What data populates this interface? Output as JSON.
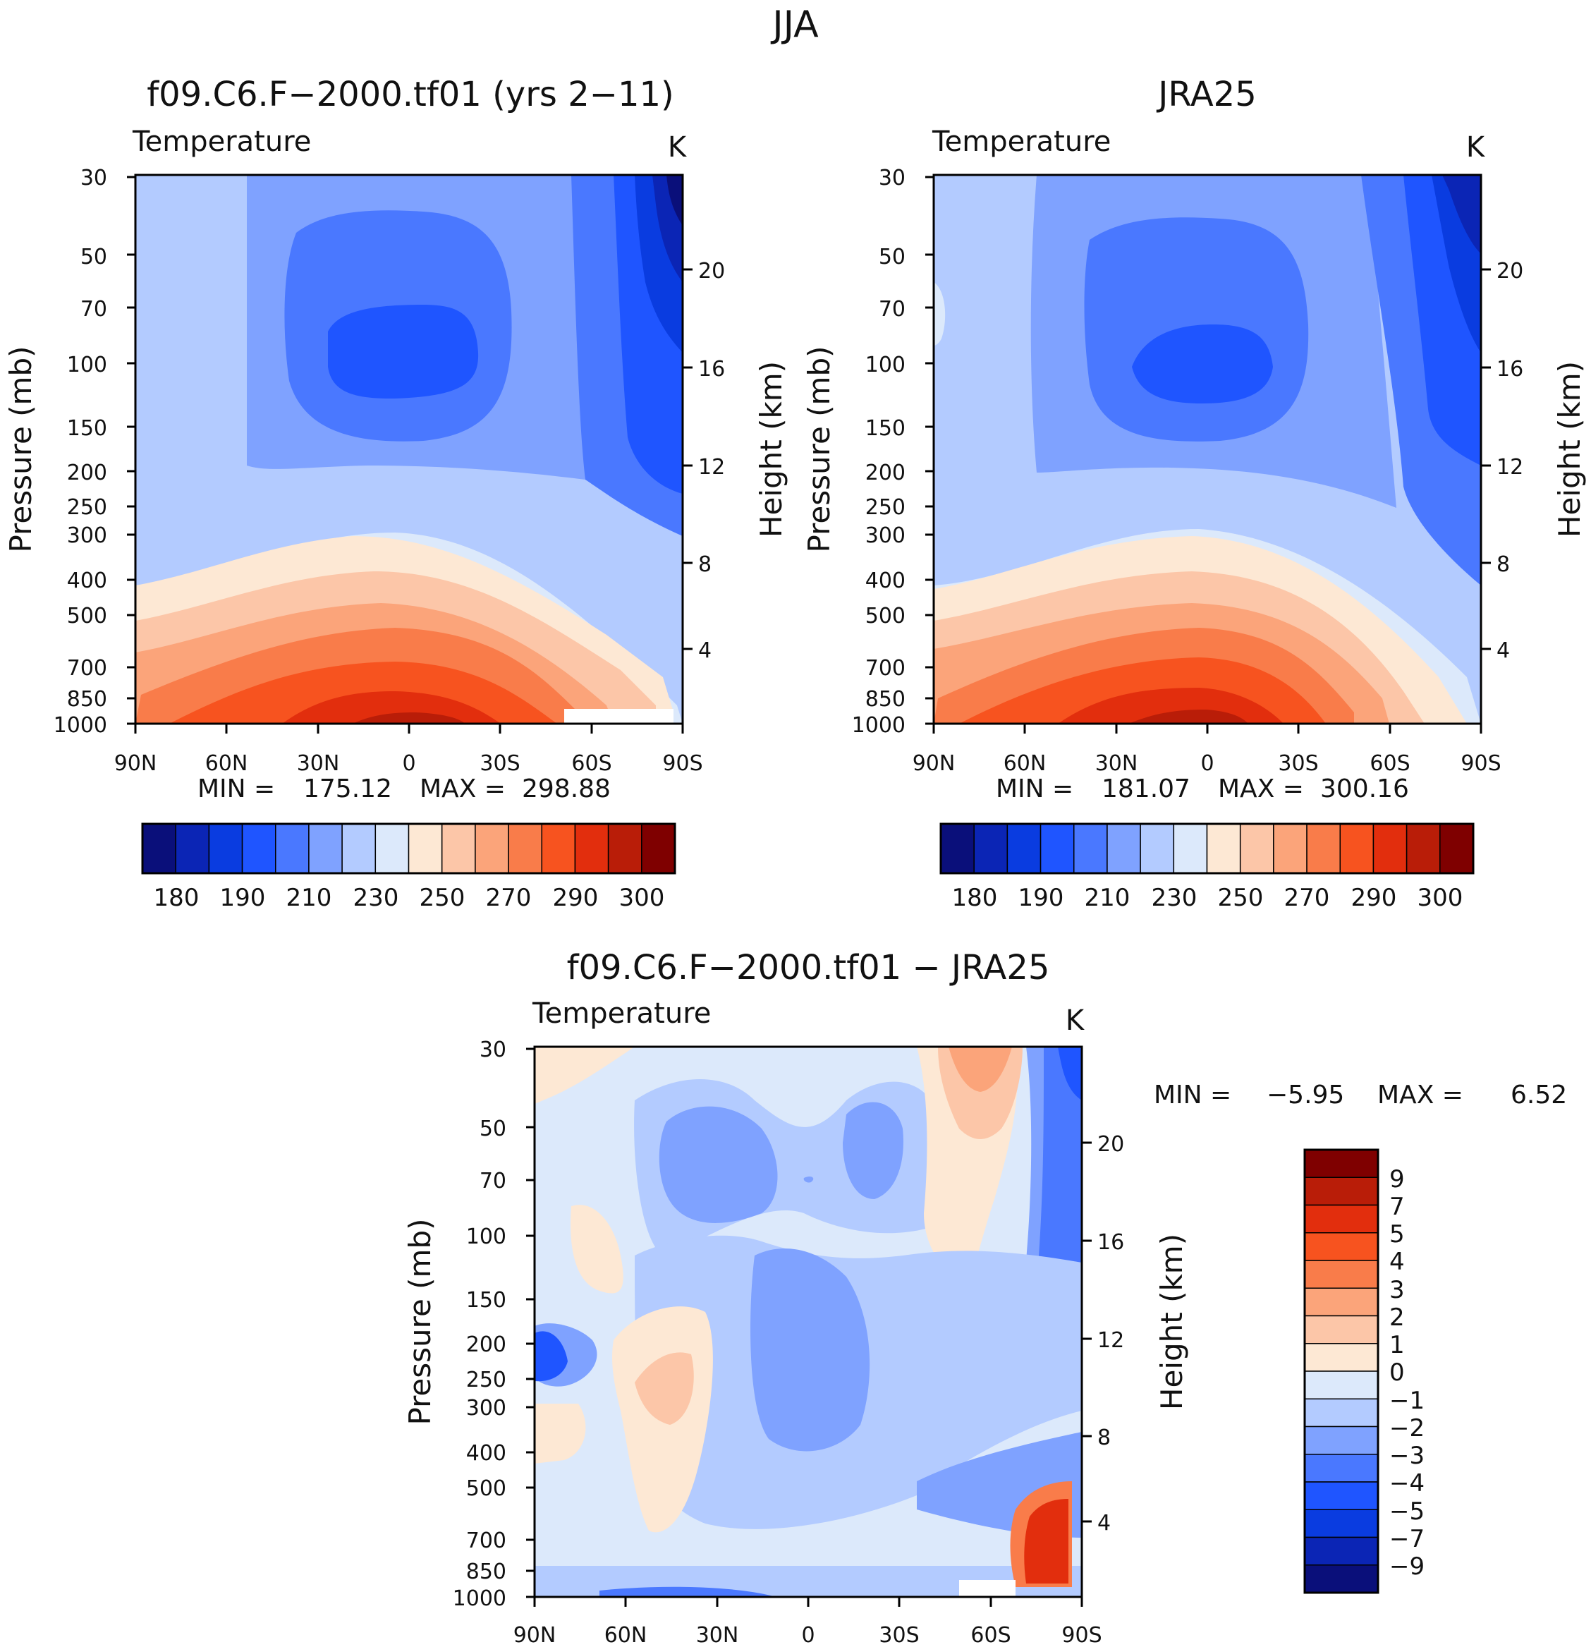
{
  "figure": {
    "season": "JJA"
  },
  "colors": {
    "contour_palette": [
      "#0a0f7a",
      "#0b25b5",
      "#0a3ce0",
      "#1f55ff",
      "#4a78ff",
      "#7fa2ff",
      "#b3cbff",
      "#dce9fb",
      "#fde8d4",
      "#fcc6a8",
      "#fba47a",
      "#f97c4a",
      "#f7531f",
      "#e22e0d",
      "#b91d08",
      "#7f0000"
    ],
    "diff_palette": [
      "#0a0f7a",
      "#0b25b5",
      "#0a3ce0",
      "#1f55ff",
      "#4a78ff",
      "#7fa2ff",
      "#b3cbff",
      "#dce9fb",
      "#fde8d4",
      "#fcc6a8",
      "#fba47a",
      "#f97c4a",
      "#f7531f",
      "#e22e0d",
      "#b91d08",
      "#7f0000"
    ]
  },
  "chart_data": [
    {
      "type": "heatmap",
      "panel": "model",
      "title": "f09.C6.F−2000.tf01 (yrs 2−11)",
      "variable": "Temperature",
      "units": "K",
      "xlabel": "",
      "ylabel": "Pressure (mb)",
      "ylabel_right": "Height (km)",
      "x_tick_labels": [
        "90N",
        "60N",
        "30N",
        "0",
        "30S",
        "60S",
        "90S"
      ],
      "y_tick_labels": [
        "30",
        "50",
        "70",
        "100",
        "150",
        "200",
        "250",
        "300",
        "400",
        "500",
        "700",
        "850",
        "1000"
      ],
      "y_pressure_values": [
        30,
        50,
        70,
        100,
        150,
        200,
        250,
        300,
        400,
        500,
        700,
        850,
        1000
      ],
      "right_tick_labels": [
        "20",
        "16",
        "12",
        "8",
        "4"
      ],
      "min_label": "MIN =",
      "min_value": "175.12",
      "max_label": "MAX =",
      "max_value": "298.88",
      "colorbar_labels": [
        "180",
        "190",
        "210",
        "230",
        "250",
        "270",
        "290",
        "300"
      ]
    },
    {
      "type": "heatmap",
      "panel": "obs",
      "title": "JRA25",
      "variable": "Temperature",
      "units": "K",
      "xlabel": "",
      "ylabel": "Pressure (mb)",
      "ylabel_right": "Height (km)",
      "x_tick_labels": [
        "90N",
        "60N",
        "30N",
        "0",
        "30S",
        "60S",
        "90S"
      ],
      "y_tick_labels": [
        "30",
        "50",
        "70",
        "100",
        "150",
        "200",
        "250",
        "300",
        "400",
        "500",
        "700",
        "850",
        "1000"
      ],
      "y_pressure_values": [
        30,
        50,
        70,
        100,
        150,
        200,
        250,
        300,
        400,
        500,
        700,
        850,
        1000
      ],
      "right_tick_labels": [
        "20",
        "16",
        "12",
        "8",
        "4"
      ],
      "min_label": "MIN =",
      "min_value": "181.07",
      "max_label": "MAX =",
      "max_value": "300.16",
      "colorbar_labels": [
        "180",
        "190",
        "210",
        "230",
        "250",
        "270",
        "290",
        "300"
      ]
    },
    {
      "type": "heatmap",
      "panel": "diff",
      "title": "f09.C6.F−2000.tf01 − JRA25",
      "variable": "Temperature",
      "units": "K",
      "xlabel": "",
      "ylabel": "Pressure (mb)",
      "ylabel_right": "Height (km)",
      "x_tick_labels": [
        "90N",
        "60N",
        "30N",
        "0",
        "30S",
        "60S",
        "90S"
      ],
      "y_tick_labels": [
        "30",
        "50",
        "70",
        "100",
        "150",
        "200",
        "250",
        "300",
        "400",
        "500",
        "700",
        "850",
        "1000"
      ],
      "y_pressure_values": [
        30,
        50,
        70,
        100,
        150,
        200,
        250,
        300,
        400,
        500,
        700,
        850,
        1000
      ],
      "right_tick_labels": [
        "20",
        "16",
        "12",
        "8",
        "4"
      ],
      "min_label": "MIN =",
      "min_value": "−5.95",
      "max_label": "MAX =",
      "max_value": "6.52",
      "colorbar_labels": [
        "9",
        "7",
        "5",
        "4",
        "3",
        "2",
        "1",
        "0",
        "−1",
        "−2",
        "−3",
        "−4",
        "−5",
        "−7",
        "−9"
      ]
    }
  ]
}
